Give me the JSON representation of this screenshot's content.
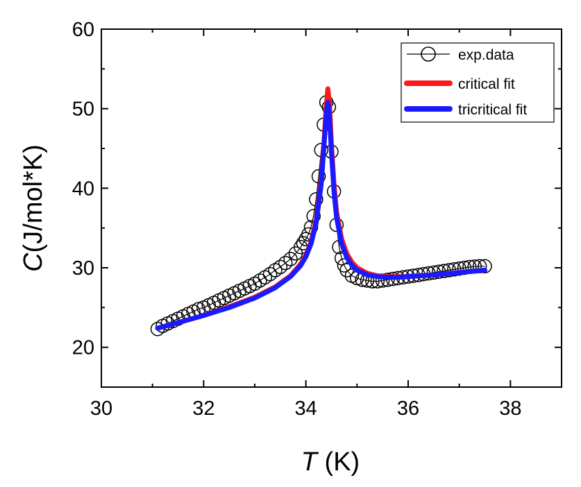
{
  "chart_data": {
    "type": "line",
    "xlabel": {
      "symbol": "T",
      "unit": " (K)"
    },
    "ylabel": {
      "symbol": "C",
      "unit": "(J/mol*K)"
    },
    "xlim": [
      30,
      39
    ],
    "ylim": [
      15,
      60
    ],
    "x_ticks": [
      30,
      32,
      34,
      36,
      38
    ],
    "y_ticks": [
      20,
      30,
      40,
      50,
      60
    ],
    "legend_position": "top-right",
    "series": [
      {
        "name": "exp.data",
        "style": "open-circle markers with thin black line",
        "color": "#000000",
        "x": [
          31.1,
          31.2,
          31.3,
          31.4,
          31.5,
          31.6,
          31.7,
          31.8,
          31.9,
          32.0,
          32.1,
          32.2,
          32.3,
          32.4,
          32.5,
          32.6,
          32.7,
          32.8,
          32.9,
          33.0,
          33.1,
          33.2,
          33.3,
          33.4,
          33.5,
          33.6,
          33.7,
          33.8,
          33.9,
          33.95,
          34.0,
          34.05,
          34.1,
          34.15,
          34.2,
          34.25,
          34.3,
          34.35,
          34.4,
          34.45,
          34.5,
          34.55,
          34.6,
          34.65,
          34.7,
          34.75,
          34.8,
          34.9,
          35.0,
          35.1,
          35.2,
          35.3,
          35.4,
          35.5,
          35.6,
          35.7,
          35.8,
          35.9,
          36.0,
          36.1,
          36.2,
          36.3,
          36.4,
          36.5,
          36.6,
          36.7,
          36.8,
          36.9,
          37.0,
          37.1,
          37.2,
          37.3,
          37.4,
          37.5
        ],
        "y": [
          22.3,
          22.7,
          23.0,
          23.3,
          23.6,
          23.9,
          24.2,
          24.5,
          24.8,
          25.0,
          25.3,
          25.6,
          25.9,
          26.2,
          26.5,
          26.8,
          27.1,
          27.4,
          27.7,
          28.0,
          28.4,
          28.8,
          29.2,
          29.7,
          30.1,
          30.6,
          31.1,
          31.8,
          32.6,
          33.1,
          33.6,
          34.2,
          35.1,
          36.5,
          38.6,
          41.5,
          44.8,
          48.0,
          50.8,
          50.2,
          44.6,
          39.6,
          35.4,
          32.6,
          31.2,
          30.3,
          29.7,
          29.0,
          28.7,
          28.5,
          28.4,
          28.3,
          28.3,
          28.4,
          28.5,
          28.6,
          28.7,
          28.8,
          28.9,
          29.0,
          29.1,
          29.2,
          29.3,
          29.4,
          29.5,
          29.6,
          29.7,
          29.8,
          29.9,
          30.0,
          30.1,
          30.15,
          30.2,
          30.2
        ]
      },
      {
        "name": "critical fit",
        "style": "thick line",
        "color": "#ff1a1a",
        "x": [
          31.1,
          31.5,
          32.0,
          32.5,
          33.0,
          33.4,
          33.7,
          33.9,
          34.0,
          34.1,
          34.2,
          34.3,
          34.35,
          34.4,
          34.43,
          34.46,
          34.5,
          34.55,
          34.6,
          34.7,
          34.8,
          34.9,
          35.0,
          35.2,
          35.4,
          35.6,
          35.8,
          36.0,
          36.5,
          37.0,
          37.5
        ],
        "y": [
          22.4,
          23.1,
          24.0,
          25.1,
          26.3,
          27.6,
          29.0,
          30.5,
          31.6,
          33.2,
          36.0,
          41.0,
          45.5,
          50.5,
          52.5,
          50.8,
          45.5,
          40.5,
          37.0,
          33.6,
          31.8,
          30.7,
          30.0,
          29.3,
          29.0,
          28.9,
          28.9,
          28.9,
          29.1,
          29.4,
          29.7
        ]
      },
      {
        "name": "tricritical fit",
        "style": "thick line",
        "color": "#1a1aff",
        "x": [
          31.1,
          31.5,
          32.0,
          32.5,
          33.0,
          33.4,
          33.7,
          33.9,
          34.0,
          34.1,
          34.2,
          34.3,
          34.35,
          34.4,
          34.43,
          34.46,
          34.5,
          34.55,
          34.6,
          34.7,
          34.8,
          34.9,
          35.0,
          35.2,
          35.4,
          35.6,
          35.8,
          36.0,
          36.5,
          37.0,
          37.5
        ],
        "y": [
          22.4,
          23.1,
          24.0,
          25.0,
          26.2,
          27.5,
          28.9,
          30.3,
          31.4,
          33.0,
          35.6,
          40.5,
          45.0,
          49.5,
          50.8,
          49.0,
          44.5,
          39.5,
          36.3,
          33.0,
          31.3,
          30.3,
          29.7,
          29.1,
          28.9,
          28.8,
          28.8,
          28.9,
          29.1,
          29.4,
          29.7
        ]
      }
    ]
  }
}
